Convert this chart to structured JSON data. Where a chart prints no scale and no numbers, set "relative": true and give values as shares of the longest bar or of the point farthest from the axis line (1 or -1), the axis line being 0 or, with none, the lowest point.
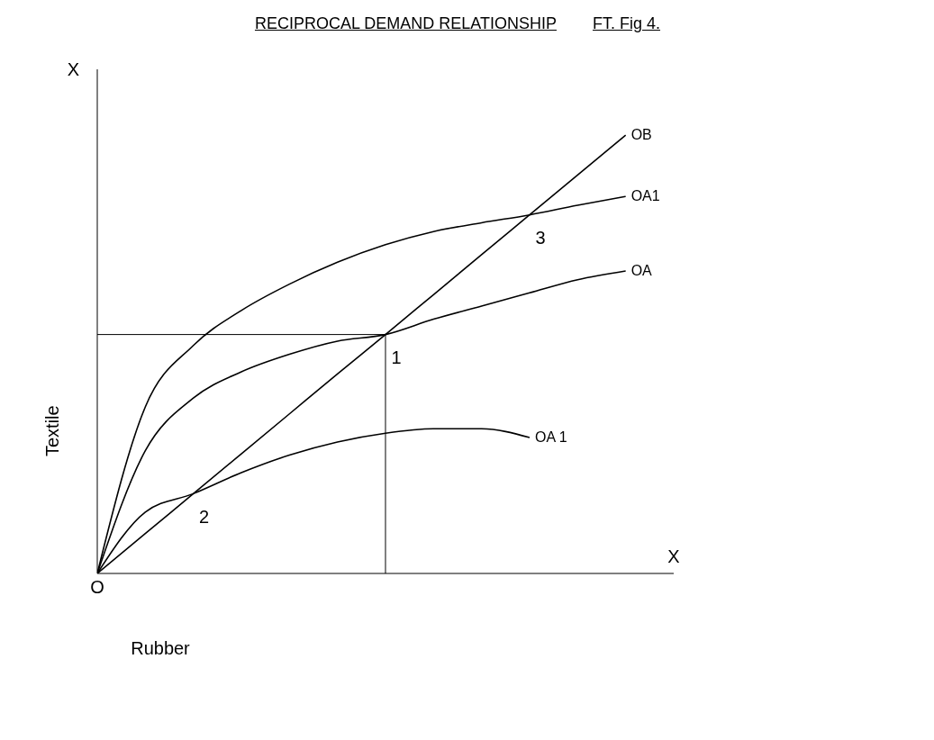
{
  "chart_data": {
    "type": "line",
    "title": "RECIPROCAL DEMAND RELATIONSHIP",
    "subtitle": "FT. Fig 4.",
    "xlabel": "Rubber",
    "ylabel": "Textile",
    "relative": true,
    "grid": false,
    "legend": false,
    "marker": "none",
    "line_style": "solid",
    "categories": [
      null,
      null,
      null,
      null,
      null,
      null,
      null,
      null,
      null,
      null,
      null,
      null,
      null
    ],
    "series": [
      {
        "name": "OB",
        "color": "#000000",
        "values": [
          0,
          0.091,
          0.182,
          0.273,
          0.364,
          0.455,
          0.545,
          0.636,
          0.727,
          0.818,
          0.909,
          1,
          null
        ]
      },
      {
        "name": "OA1",
        "color": "#000000",
        "values": [
          0,
          0.38,
          0.52,
          0.6,
          0.66,
          0.71,
          0.75,
          0.78,
          0.8,
          0.818,
          0.84,
          0.86,
          null
        ]
      },
      {
        "name": "OA",
        "color": "#000000",
        "values": [
          0,
          0.28,
          0.4,
          0.46,
          0.5,
          0.53,
          0.545,
          0.58,
          0.61,
          0.64,
          0.67,
          0.69,
          null
        ]
      },
      {
        "name": "OA 1",
        "color": "#000000",
        "values": [
          0,
          0.14,
          0.182,
          0.23,
          0.27,
          0.3,
          0.32,
          0.33,
          0.33,
          0.31,
          null,
          null,
          null
        ]
      }
    ],
    "ref_lines": [
      {
        "axis": "y",
        "value": 0.545
      }
    ],
    "annotations": [
      {
        "text": "1",
        "y": 0.545
      },
      {
        "text": "2",
        "y": 0.182
      },
      {
        "text": "3",
        "y": 0.818
      },
      "O",
      "X",
      "X"
    ]
  }
}
